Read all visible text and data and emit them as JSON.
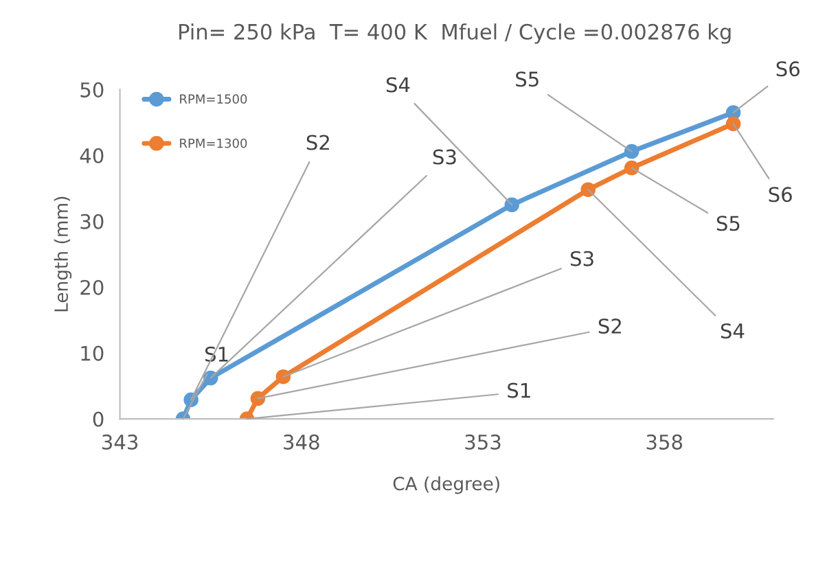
{
  "chart_data": {
    "type": "line",
    "title": "Pin= 250 kPa  T= 400 K  Mfuel / Cycle =0.002876 kg",
    "xlabel": "CA (degree)",
    "ylabel": "Length (mm)",
    "series": [
      {
        "name": "RPM=1500",
        "color": "#5b9bd5",
        "x": [
          344.74,
          344.96,
          345.5,
          353.8,
          357.1,
          359.9
        ],
        "values": [
          0,
          2.9,
          6.2,
          32.5,
          40.6,
          46.5
        ]
      },
      {
        "name": "RPM=1300",
        "color": "#ed7d31",
        "x": [
          346.5,
          346.8,
          347.5,
          355.9,
          357.1,
          359.9
        ],
        "values": [
          0,
          3.1,
          6.4,
          34.8,
          38.1,
          44.8
        ]
      }
    ],
    "xlim": [
      343,
      361
    ],
    "xticks": [
      343,
      348,
      353,
      358
    ],
    "ylim": [
      0,
      50
    ],
    "yticks": [
      0,
      10,
      20,
      30,
      40,
      50
    ],
    "grid": false,
    "legend": "top left",
    "marker": "circle",
    "line_style": "solid",
    "annotations": [
      {
        "text": "S1",
        "x": 344.74,
        "y": 0
      },
      {
        "text": "S2",
        "x": 344.96,
        "y": 2.9
      },
      {
        "text": "S3",
        "x": 345.5,
        "y": 6.2
      },
      {
        "text": "S4",
        "x": 353.8,
        "y": 32.5
      },
      {
        "text": "S5",
        "x": 357.1,
        "y": 40.6
      },
      {
        "text": "S6",
        "x": 359.9,
        "y": 46.5
      },
      {
        "text": "S1",
        "x": 346.5,
        "y": 0
      },
      {
        "text": "S2",
        "x": 346.8,
        "y": 3.1
      },
      {
        "text": "S3",
        "x": 347.5,
        "y": 6.4
      },
      {
        "text": "S4",
        "x": 355.9,
        "y": 34.8
      },
      {
        "text": "S5",
        "x": 357.1,
        "y": 38.1
      },
      {
        "text": "S6",
        "x": 359.9,
        "y": 44.8
      }
    ]
  }
}
